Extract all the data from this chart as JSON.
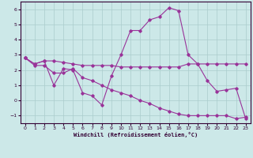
{
  "xlabel": "Windchill (Refroidissement éolien,°C)",
  "background_color": "#cce8e8",
  "grid_color": "#aacccc",
  "line_color": "#993399",
  "x_ticks": [
    0,
    1,
    2,
    3,
    4,
    5,
    6,
    7,
    8,
    9,
    10,
    11,
    12,
    13,
    14,
    15,
    16,
    17,
    18,
    19,
    20,
    21,
    22,
    23
  ],
  "y_ticks": [
    -1,
    0,
    1,
    2,
    3,
    4,
    5,
    6
  ],
  "ylim": [
    -1.5,
    6.5
  ],
  "xlim": [
    -0.5,
    23.5
  ],
  "series1_x": [
    0,
    1,
    2,
    3,
    4,
    5,
    6,
    7,
    8,
    9,
    10,
    11,
    12,
    13,
    14,
    15,
    16,
    17,
    18,
    19,
    20,
    21,
    22,
    23
  ],
  "series1_y": [
    2.8,
    2.4,
    2.6,
    2.6,
    2.5,
    2.4,
    2.3,
    2.3,
    2.3,
    2.3,
    2.2,
    2.2,
    2.2,
    2.2,
    2.2,
    2.2,
    2.2,
    2.4,
    2.4,
    2.4,
    2.4,
    2.4,
    2.4,
    2.4
  ],
  "series2_x": [
    0,
    1,
    2,
    3,
    4,
    5,
    6,
    7,
    8,
    9,
    10,
    11,
    12,
    13,
    14,
    15,
    16,
    17,
    18,
    19,
    20,
    21,
    22,
    23
  ],
  "series2_y": [
    2.8,
    2.4,
    2.6,
    1.0,
    2.1,
    2.0,
    0.5,
    0.3,
    -0.3,
    1.6,
    3.0,
    4.6,
    4.6,
    5.3,
    5.5,
    6.1,
    5.9,
    3.0,
    2.4,
    1.3,
    0.6,
    0.7,
    0.8,
    -1.2
  ],
  "series3_x": [
    0,
    1,
    2,
    3,
    4,
    5,
    6,
    7,
    8,
    9,
    10,
    11,
    12,
    13,
    14,
    15,
    16,
    17,
    18,
    19,
    20,
    21,
    22,
    23
  ],
  "series3_y": [
    2.8,
    2.3,
    2.3,
    1.8,
    1.8,
    2.1,
    1.5,
    1.3,
    1.0,
    0.7,
    0.5,
    0.3,
    0.0,
    -0.2,
    -0.5,
    -0.7,
    -0.9,
    -1.0,
    -1.0,
    -1.0,
    -1.0,
    -1.0,
    -1.2,
    -1.1
  ]
}
